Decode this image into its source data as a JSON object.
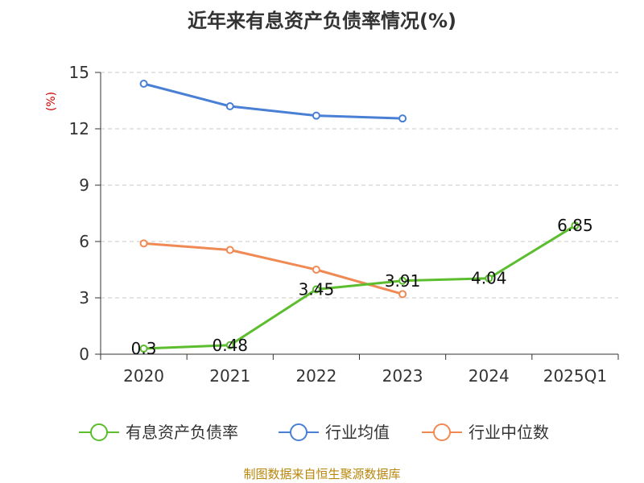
{
  "chart_data": {
    "type": "line",
    "title": "近年来有息资产负债率情况(%)",
    "ylabel": "(%)",
    "xlabel": "",
    "categories": [
      "2020",
      "2021",
      "2022",
      "2023",
      "2024",
      "2025Q1"
    ],
    "ylim": [
      0,
      15
    ],
    "yticks": [
      0,
      3,
      6,
      9,
      12,
      15
    ],
    "grid": true,
    "legend_position": "bottom",
    "series": [
      {
        "name": "有息资产负债率",
        "color": "#5cbd2e",
        "values": [
          0.3,
          0.48,
          3.45,
          3.91,
          4.04,
          6.85
        ],
        "labels": [
          "0.3",
          "0.48",
          "3.45",
          "3.91",
          "4.04",
          "6.85"
        ]
      },
      {
        "name": "行业均值",
        "color": "#4a7fd6",
        "values": [
          14.4,
          13.2,
          12.7,
          12.55,
          null,
          null
        ]
      },
      {
        "name": "行业中位数",
        "color": "#f08a55",
        "values": [
          5.9,
          5.55,
          4.5,
          3.2,
          null,
          null
        ]
      }
    ]
  },
  "source": "制图数据来自恒生聚源数据库"
}
